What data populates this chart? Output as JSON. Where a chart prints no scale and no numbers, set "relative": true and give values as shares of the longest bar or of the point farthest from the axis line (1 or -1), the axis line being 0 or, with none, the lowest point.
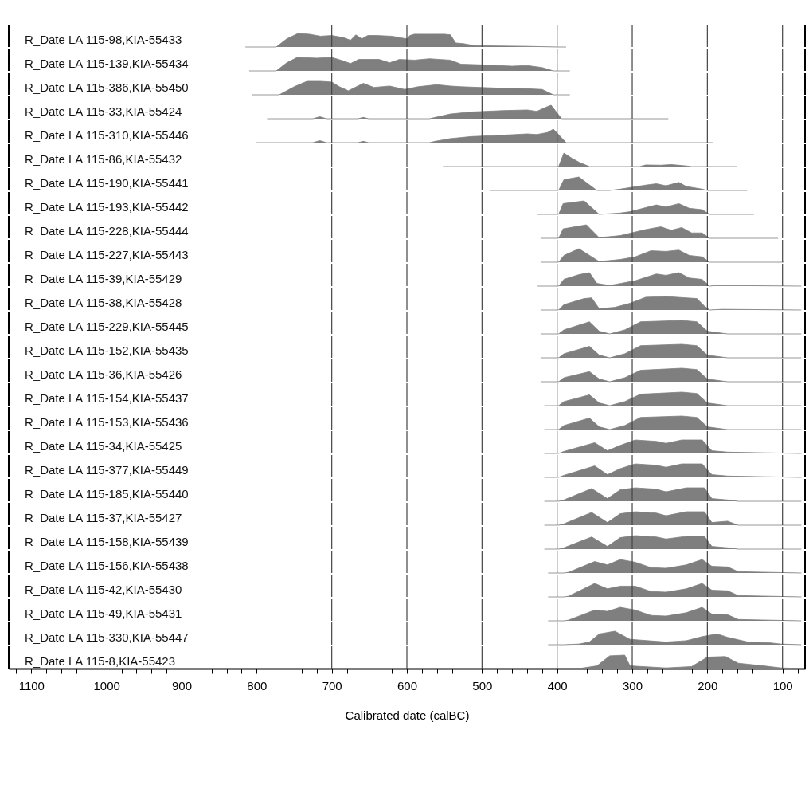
{
  "chart_data": [
    {
      "type": "area",
      "relative": true,
      "ylabel": "R_Date LA 115-98,KIA-55433",
      "color": "#7f7f7f",
      "xlim": [
        1130,
        70
      ],
      "tick_labels": false,
      "ref_lines": [
        {
          "axis": "x",
          "value": 700
        },
        {
          "axis": "x",
          "value": 600
        },
        {
          "axis": "x",
          "value": 500
        },
        {
          "axis": "x",
          "value": 400
        },
        {
          "axis": "x",
          "value": 300
        },
        {
          "axis": "x",
          "value": 200
        },
        {
          "axis": "x",
          "value": 100
        }
      ],
      "x": [
        815,
        774,
        760,
        745,
        730,
        715,
        700,
        685,
        675,
        668,
        660,
        652,
        640,
        620,
        600,
        596,
        590,
        570,
        550,
        542,
        535,
        525,
        510,
        480,
        440,
        400,
        388
      ],
      "values": [
        0,
        0,
        0.6,
        1,
        0.95,
        0.8,
        0.85,
        0.7,
        0.5,
        0.9,
        0.6,
        0.85,
        0.85,
        0.8,
        0.6,
        0.85,
        0.95,
        0.95,
        0.95,
        0.9,
        0.3,
        0.25,
        0.1,
        0.08,
        0.05,
        0,
        0
      ]
    },
    {
      "type": "area",
      "relative": true,
      "ylabel": "R_Date LA 115-139,KIA-55434",
      "color": "#7f7f7f",
      "xlim": [
        1130,
        70
      ],
      "tick_labels": false,
      "ref_lines": [
        {
          "axis": "x",
          "value": 700
        },
        {
          "axis": "x",
          "value": 600
        },
        {
          "axis": "x",
          "value": 500
        },
        {
          "axis": "x",
          "value": 400
        },
        {
          "axis": "x",
          "value": 300
        },
        {
          "axis": "x",
          "value": 200
        },
        {
          "axis": "x",
          "value": 100
        }
      ],
      "x": [
        810,
        774,
        760,
        746,
        720,
        700,
        688,
        675,
        664,
        650,
        637,
        623,
        610,
        590,
        570,
        542,
        528,
        500,
        460,
        440,
        420,
        405,
        383
      ],
      "values": [
        0,
        0,
        0.6,
        1,
        0.95,
        1,
        0.8,
        0.55,
        0.85,
        0.85,
        0.85,
        0.6,
        0.85,
        0.8,
        0.9,
        0.8,
        0.5,
        0.45,
        0.35,
        0.4,
        0.25,
        0,
        0
      ]
    },
    {
      "type": "area",
      "relative": true,
      "ylabel": "R_Date LA 115-386,KIA-55450",
      "color": "#7f7f7f",
      "xlim": [
        1130,
        70
      ],
      "tick_labels": false,
      "ref_lines": [
        {
          "axis": "x",
          "value": 700
        },
        {
          "axis": "x",
          "value": 600
        },
        {
          "axis": "x",
          "value": 500
        },
        {
          "axis": "x",
          "value": 400
        },
        {
          "axis": "x",
          "value": 300
        },
        {
          "axis": "x",
          "value": 200
        },
        {
          "axis": "x",
          "value": 100
        }
      ],
      "x": [
        806,
        770,
        750,
        733,
        715,
        700,
        690,
        678,
        658,
        644,
        623,
        603,
        585,
        560,
        542,
        528,
        480,
        440,
        420,
        405,
        383
      ],
      "values": [
        0,
        0,
        0.6,
        1,
        1,
        0.95,
        0.6,
        0.3,
        0.85,
        0.55,
        0.65,
        0.4,
        0.6,
        0.75,
        0.65,
        0.6,
        0.5,
        0.45,
        0.4,
        0,
        0
      ]
    },
    {
      "type": "area",
      "relative": true,
      "ylabel": "R_Date LA 115-33,KIA-55424",
      "color": "#7f7f7f",
      "xlim": [
        1130,
        70
      ],
      "tick_labels": false,
      "ref_lines": [
        {
          "axis": "x",
          "value": 700
        },
        {
          "axis": "x",
          "value": 600
        },
        {
          "axis": "x",
          "value": 500
        },
        {
          "axis": "x",
          "value": 400
        },
        {
          "axis": "x",
          "value": 300
        },
        {
          "axis": "x",
          "value": 200
        },
        {
          "axis": "x",
          "value": 100
        }
      ],
      "x": [
        786,
        725,
        716,
        707,
        665,
        658,
        651,
        570,
        562,
        542,
        514,
        473,
        440,
        427,
        413,
        408,
        394,
        252
      ],
      "values": [
        0,
        0,
        0.15,
        0,
        0,
        0.1,
        0,
        0,
        0.1,
        0.35,
        0.5,
        0.6,
        0.65,
        0.55,
        0.9,
        1,
        0,
        0
      ]
    },
    {
      "type": "area",
      "relative": true,
      "ylabel": "R_Date LA 115-310,KIA-55446",
      "color": "#7f7f7f",
      "xlim": [
        1130,
        70
      ],
      "tick_labels": false,
      "ref_lines": [
        {
          "axis": "x",
          "value": 700
        },
        {
          "axis": "x",
          "value": 600
        },
        {
          "axis": "x",
          "value": 500
        },
        {
          "axis": "x",
          "value": 400
        },
        {
          "axis": "x",
          "value": 300
        },
        {
          "axis": "x",
          "value": 200
        },
        {
          "axis": "x",
          "value": 100
        }
      ],
      "x": [
        801,
        725,
        716,
        707,
        665,
        658,
        651,
        570,
        562,
        542,
        514,
        473,
        440,
        427,
        413,
        405,
        388,
        192
      ],
      "values": [
        0,
        0,
        0.15,
        0,
        0,
        0.1,
        0,
        0,
        0.1,
        0.3,
        0.45,
        0.55,
        0.65,
        0.6,
        0.75,
        1,
        0,
        0
      ]
    },
    {
      "type": "area",
      "relative": true,
      "ylabel": "R_Date LA 115-86,KIA-55432",
      "color": "#7f7f7f",
      "xlim": [
        1130,
        70
      ],
      "tick_labels": false,
      "ref_lines": [
        {
          "axis": "x",
          "value": 700
        },
        {
          "axis": "x",
          "value": 600
        },
        {
          "axis": "x",
          "value": 500
        },
        {
          "axis": "x",
          "value": 400
        },
        {
          "axis": "x",
          "value": 300
        },
        {
          "axis": "x",
          "value": 200
        },
        {
          "axis": "x",
          "value": 100
        }
      ],
      "x": [
        552,
        398,
        391,
        380,
        370,
        357,
        290,
        282,
        262,
        248,
        238,
        228,
        221,
        161
      ],
      "values": [
        0,
        0,
        1,
        0.6,
        0.3,
        0,
        0,
        0.12,
        0.1,
        0.15,
        0.1,
        0.05,
        0,
        0
      ]
    },
    {
      "type": "area",
      "relative": true,
      "ylabel": "R_Date LA 115-190,KIA-55441",
      "color": "#7f7f7f",
      "xlim": [
        1130,
        70
      ],
      "tick_labels": false,
      "ref_lines": [
        {
          "axis": "x",
          "value": 700
        },
        {
          "axis": "x",
          "value": 600
        },
        {
          "axis": "x",
          "value": 500
        },
        {
          "axis": "x",
          "value": 400
        },
        {
          "axis": "x",
          "value": 300
        },
        {
          "axis": "x",
          "value": 200
        },
        {
          "axis": "x",
          "value": 100
        }
      ],
      "x": [
        490,
        398,
        391,
        371,
        347,
        330,
        316,
        282,
        268,
        255,
        238,
        228,
        207,
        200,
        147
      ],
      "values": [
        0,
        0,
        0.8,
        1,
        0,
        0,
        0.1,
        0.4,
        0.5,
        0.35,
        0.6,
        0.3,
        0.1,
        0,
        0
      ]
    },
    {
      "type": "area",
      "relative": true,
      "ylabel": "R_Date LA 115-193,KIA-55442",
      "color": "#7f7f7f",
      "xlim": [
        1130,
        70
      ],
      "tick_labels": false,
      "ref_lines": [
        {
          "axis": "x",
          "value": 700
        },
        {
          "axis": "x",
          "value": 600
        },
        {
          "axis": "x",
          "value": 500
        },
        {
          "axis": "x",
          "value": 400
        },
        {
          "axis": "x",
          "value": 300
        },
        {
          "axis": "x",
          "value": 200
        },
        {
          "axis": "x",
          "value": 100
        }
      ],
      "x": [
        426,
        398,
        392,
        364,
        344,
        316,
        303,
        268,
        255,
        238,
        224,
        207,
        197,
        138
      ],
      "values": [
        0,
        0,
        0.8,
        1,
        0,
        0.1,
        0.2,
        0.7,
        0.55,
        0.8,
        0.45,
        0.35,
        0,
        0
      ]
    },
    {
      "type": "area",
      "relative": true,
      "ylabel": "R_Date LA 115-228,KIA-55444",
      "color": "#7f7f7f",
      "xlim": [
        1130,
        70
      ],
      "tick_labels": false,
      "ref_lines": [
        {
          "axis": "x",
          "value": 700
        },
        {
          "axis": "x",
          "value": 600
        },
        {
          "axis": "x",
          "value": 500
        },
        {
          "axis": "x",
          "value": 400
        },
        {
          "axis": "x",
          "value": 300
        },
        {
          "axis": "x",
          "value": 200
        },
        {
          "axis": "x",
          "value": 100
        }
      ],
      "x": [
        422,
        398,
        392,
        361,
        344,
        316,
        282,
        262,
        248,
        234,
        221,
        207,
        197,
        106
      ],
      "values": [
        0,
        0,
        0.7,
        1,
        0.05,
        0.2,
        0.65,
        0.85,
        0.6,
        0.8,
        0.4,
        0.4,
        0,
        0
      ]
    },
    {
      "type": "area",
      "relative": true,
      "ylabel": "R_Date LA 115-227,KIA-55443",
      "color": "#7f7f7f",
      "xlim": [
        1130,
        70
      ],
      "tick_labels": false,
      "ref_lines": [
        {
          "axis": "x",
          "value": 700
        },
        {
          "axis": "x",
          "value": 600
        },
        {
          "axis": "x",
          "value": 500
        },
        {
          "axis": "x",
          "value": 400
        },
        {
          "axis": "x",
          "value": 300
        },
        {
          "axis": "x",
          "value": 200
        },
        {
          "axis": "x",
          "value": 100
        }
      ],
      "x": [
        422,
        398,
        391,
        371,
        344,
        316,
        296,
        275,
        255,
        238,
        224,
        207,
        197,
        98
      ],
      "values": [
        0,
        0,
        0.5,
        1,
        0.05,
        0.2,
        0.4,
        0.85,
        0.8,
        0.9,
        0.5,
        0.4,
        0,
        0
      ]
    },
    {
      "type": "area",
      "relative": true,
      "ylabel": "R_Date LA 115-39,KIA-55429",
      "color": "#7f7f7f",
      "xlim": [
        1130,
        70
      ],
      "tick_labels": false,
      "ref_lines": [
        {
          "axis": "x",
          "value": 700
        },
        {
          "axis": "x",
          "value": 600
        },
        {
          "axis": "x",
          "value": 500
        },
        {
          "axis": "x",
          "value": 400
        },
        {
          "axis": "x",
          "value": 300
        },
        {
          "axis": "x",
          "value": 200
        },
        {
          "axis": "x",
          "value": 100
        }
      ],
      "x": [
        426,
        398,
        391,
        371,
        357,
        347,
        330,
        296,
        268,
        255,
        238,
        224,
        207,
        197,
        187,
        75
      ],
      "values": [
        0,
        0,
        0.5,
        0.85,
        1,
        0.2,
        0.05,
        0.4,
        0.9,
        0.8,
        1,
        0.6,
        0.5,
        0,
        0.05,
        0
      ]
    },
    {
      "type": "area",
      "relative": true,
      "ylabel": "R_Date LA 115-38,KIA-55428",
      "color": "#7f7f7f",
      "xlim": [
        1130,
        70
      ],
      "tick_labels": false,
      "ref_lines": [
        {
          "axis": "x",
          "value": 700
        },
        {
          "axis": "x",
          "value": 600
        },
        {
          "axis": "x",
          "value": 500
        },
        {
          "axis": "x",
          "value": 400
        },
        {
          "axis": "x",
          "value": 300
        },
        {
          "axis": "x",
          "value": 200
        },
        {
          "axis": "x",
          "value": 100
        }
      ],
      "x": [
        422,
        398,
        391,
        364,
        354,
        344,
        323,
        303,
        282,
        255,
        228,
        214,
        204,
        197,
        180,
        75
      ],
      "values": [
        0,
        0,
        0.4,
        0.85,
        0.9,
        0.1,
        0.2,
        0.5,
        0.95,
        1,
        0.9,
        0.85,
        0.3,
        0,
        0.05,
        0
      ]
    },
    {
      "type": "area",
      "relative": true,
      "ylabel": "R_Date LA 115-229,KIA-55445",
      "color": "#7f7f7f",
      "xlim": [
        1130,
        70
      ],
      "tick_labels": false,
      "ref_lines": [
        {
          "axis": "x",
          "value": 700
        },
        {
          "axis": "x",
          "value": 600
        },
        {
          "axis": "x",
          "value": 500
        },
        {
          "axis": "x",
          "value": 400
        },
        {
          "axis": "x",
          "value": 300
        },
        {
          "axis": "x",
          "value": 200
        },
        {
          "axis": "x",
          "value": 100
        }
      ],
      "x": [
        422,
        398,
        391,
        357,
        344,
        330,
        310,
        289,
        234,
        214,
        200,
        180,
        173,
        75
      ],
      "values": [
        0,
        0,
        0.3,
        0.9,
        0.2,
        0,
        0.3,
        0.9,
        1,
        0.9,
        0.2,
        0.05,
        0,
        0
      ]
    },
    {
      "type": "area",
      "relative": true,
      "ylabel": "R_Date LA 115-152,KIA-55435",
      "color": "#7f7f7f",
      "xlim": [
        1130,
        70
      ],
      "tick_labels": false,
      "ref_lines": [
        {
          "axis": "x",
          "value": 700
        },
        {
          "axis": "x",
          "value": 600
        },
        {
          "axis": "x",
          "value": 500
        },
        {
          "axis": "x",
          "value": 400
        },
        {
          "axis": "x",
          "value": 300
        },
        {
          "axis": "x",
          "value": 200
        },
        {
          "axis": "x",
          "value": 100
        }
      ],
      "x": [
        422,
        398,
        391,
        357,
        344,
        330,
        310,
        289,
        234,
        214,
        200,
        180,
        173,
        75
      ],
      "values": [
        0,
        0,
        0.3,
        0.85,
        0.2,
        0,
        0.3,
        0.9,
        1,
        0.9,
        0.2,
        0.05,
        0,
        0
      ]
    },
    {
      "type": "area",
      "relative": true,
      "ylabel": "R_Date LA 115-36,KIA-55426",
      "color": "#7f7f7f",
      "xlim": [
        1130,
        70
      ],
      "tick_labels": false,
      "ref_lines": [
        {
          "axis": "x",
          "value": 700
        },
        {
          "axis": "x",
          "value": 600
        },
        {
          "axis": "x",
          "value": 500
        },
        {
          "axis": "x",
          "value": 400
        },
        {
          "axis": "x",
          "value": 300
        },
        {
          "axis": "x",
          "value": 200
        },
        {
          "axis": "x",
          "value": 100
        }
      ],
      "x": [
        422,
        398,
        391,
        357,
        344,
        330,
        310,
        289,
        234,
        214,
        200,
        180,
        173,
        75
      ],
      "values": [
        0,
        0,
        0.3,
        0.75,
        0.2,
        0,
        0.3,
        0.85,
        1,
        0.9,
        0.2,
        0.05,
        0,
        0
      ]
    },
    {
      "type": "area",
      "relative": true,
      "ylabel": "R_Date LA 115-154,KIA-55437",
      "color": "#7f7f7f",
      "xlim": [
        1130,
        70
      ],
      "tick_labels": false,
      "ref_lines": [
        {
          "axis": "x",
          "value": 700
        },
        {
          "axis": "x",
          "value": 600
        },
        {
          "axis": "x",
          "value": 500
        },
        {
          "axis": "x",
          "value": 400
        },
        {
          "axis": "x",
          "value": 300
        },
        {
          "axis": "x",
          "value": 200
        },
        {
          "axis": "x",
          "value": 100
        }
      ],
      "x": [
        417,
        398,
        391,
        357,
        344,
        330,
        310,
        289,
        234,
        214,
        200,
        180,
        173,
        75
      ],
      "values": [
        0,
        0,
        0.3,
        0.8,
        0.2,
        0,
        0.3,
        0.85,
        1,
        0.9,
        0.2,
        0.05,
        0,
        0
      ]
    },
    {
      "type": "area",
      "relative": true,
      "ylabel": "R_Date LA 115-153,KIA-55436",
      "color": "#7f7f7f",
      "xlim": [
        1130,
        70
      ],
      "tick_labels": false,
      "ref_lines": [
        {
          "axis": "x",
          "value": 700
        },
        {
          "axis": "x",
          "value": 600
        },
        {
          "axis": "x",
          "value": 500
        },
        {
          "axis": "x",
          "value": 400
        },
        {
          "axis": "x",
          "value": 300
        },
        {
          "axis": "x",
          "value": 200
        },
        {
          "axis": "x",
          "value": 100
        }
      ],
      "x": [
        417,
        398,
        391,
        357,
        344,
        330,
        310,
        289,
        234,
        214,
        200,
        180,
        173,
        75
      ],
      "values": [
        0,
        0,
        0.3,
        0.85,
        0.2,
        0,
        0.3,
        0.9,
        1,
        0.9,
        0.2,
        0.05,
        0,
        0
      ]
    },
    {
      "type": "area",
      "relative": true,
      "ylabel": "R_Date LA 115-34,KIA-55425",
      "color": "#7f7f7f",
      "xlim": [
        1130,
        70
      ],
      "tick_labels": false,
      "ref_lines": [
        {
          "axis": "x",
          "value": 700
        },
        {
          "axis": "x",
          "value": 600
        },
        {
          "axis": "x",
          "value": 500
        },
        {
          "axis": "x",
          "value": 400
        },
        {
          "axis": "x",
          "value": 300
        },
        {
          "axis": "x",
          "value": 200
        },
        {
          "axis": "x",
          "value": 100
        }
      ],
      "x": [
        417,
        398,
        391,
        350,
        333,
        316,
        296,
        268,
        255,
        234,
        207,
        194,
        173,
        75
      ],
      "values": [
        0,
        0,
        0.15,
        0.8,
        0.2,
        0.6,
        1,
        0.9,
        0.75,
        1,
        1,
        0.2,
        0.1,
        0
      ]
    },
    {
      "type": "area",
      "relative": true,
      "ylabel": "R_Date LA 115-377,KIA-55449",
      "color": "#7f7f7f",
      "xlim": [
        1130,
        70
      ],
      "tick_labels": false,
      "ref_lines": [
        {
          "axis": "x",
          "value": 700
        },
        {
          "axis": "x",
          "value": 600
        },
        {
          "axis": "x",
          "value": 500
        },
        {
          "axis": "x",
          "value": 400
        },
        {
          "axis": "x",
          "value": 300
        },
        {
          "axis": "x",
          "value": 200
        },
        {
          "axis": "x",
          "value": 100
        }
      ],
      "x": [
        417,
        398,
        391,
        350,
        333,
        316,
        296,
        268,
        255,
        234,
        207,
        194,
        173,
        75
      ],
      "values": [
        0,
        0,
        0.15,
        0.85,
        0.2,
        0.65,
        1,
        0.9,
        0.75,
        1,
        1,
        0.2,
        0.1,
        0
      ]
    },
    {
      "type": "area",
      "relative": true,
      "ylabel": "R_Date LA 115-185,KIA-55440",
      "color": "#7f7f7f",
      "xlim": [
        1130,
        70
      ],
      "tick_labels": false,
      "ref_lines": [
        {
          "axis": "x",
          "value": 700
        },
        {
          "axis": "x",
          "value": 600
        },
        {
          "axis": "x",
          "value": 500
        },
        {
          "axis": "x",
          "value": 400
        },
        {
          "axis": "x",
          "value": 300
        },
        {
          "axis": "x",
          "value": 200
        },
        {
          "axis": "x",
          "value": 100
        }
      ],
      "x": [
        417,
        398,
        391,
        354,
        333,
        316,
        296,
        268,
        255,
        228,
        204,
        194,
        173,
        159,
        75
      ],
      "values": [
        0,
        0,
        0.1,
        0.95,
        0.2,
        0.85,
        1,
        0.9,
        0.7,
        1,
        1,
        0.2,
        0.1,
        0,
        0
      ]
    },
    {
      "type": "area",
      "relative": true,
      "ylabel": "R_Date LA 115-37,KIA-55427",
      "color": "#7f7f7f",
      "xlim": [
        1130,
        70
      ],
      "tick_labels": false,
      "ref_lines": [
        {
          "axis": "x",
          "value": 700
        },
        {
          "axis": "x",
          "value": 600
        },
        {
          "axis": "x",
          "value": 500
        },
        {
          "axis": "x",
          "value": 400
        },
        {
          "axis": "x",
          "value": 300
        },
        {
          "axis": "x",
          "value": 200
        },
        {
          "axis": "x",
          "value": 100
        }
      ],
      "x": [
        417,
        398,
        391,
        354,
        333,
        316,
        296,
        268,
        255,
        228,
        204,
        194,
        173,
        159,
        75
      ],
      "values": [
        0,
        0,
        0.1,
        0.95,
        0.2,
        0.85,
        1,
        0.9,
        0.7,
        1,
        1,
        0.2,
        0.3,
        0,
        0
      ]
    },
    {
      "type": "area",
      "relative": true,
      "ylabel": "R_Date LA 115-158,KIA-55439",
      "color": "#7f7f7f",
      "xlim": [
        1130,
        70
      ],
      "tick_labels": false,
      "ref_lines": [
        {
          "axis": "x",
          "value": 700
        },
        {
          "axis": "x",
          "value": 600
        },
        {
          "axis": "x",
          "value": 500
        },
        {
          "axis": "x",
          "value": 400
        },
        {
          "axis": "x",
          "value": 300
        },
        {
          "axis": "x",
          "value": 200
        },
        {
          "axis": "x",
          "value": 100
        }
      ],
      "x": [
        417,
        398,
        391,
        354,
        333,
        316,
        296,
        268,
        255,
        228,
        204,
        194,
        173,
        159,
        75
      ],
      "values": [
        0,
        0,
        0.1,
        0.9,
        0.2,
        0.85,
        1,
        0.9,
        0.75,
        0.95,
        0.95,
        0.2,
        0.1,
        0,
        0
      ]
    },
    {
      "type": "area",
      "relative": true,
      "ylabel": "R_Date LA 115-156,KIA-55438",
      "color": "#7f7f7f",
      "xlim": [
        1130,
        70
      ],
      "tick_labels": false,
      "ref_lines": [
        {
          "axis": "x",
          "value": 700
        },
        {
          "axis": "x",
          "value": 600
        },
        {
          "axis": "x",
          "value": 500
        },
        {
          "axis": "x",
          "value": 400
        },
        {
          "axis": "x",
          "value": 300
        },
        {
          "axis": "x",
          "value": 200
        },
        {
          "axis": "x",
          "value": 100
        }
      ],
      "x": [
        412,
        391,
        385,
        350,
        333,
        316,
        296,
        275,
        255,
        228,
        207,
        194,
        173,
        159,
        118,
        75
      ],
      "values": [
        0,
        0,
        0.05,
        0.85,
        0.6,
        1,
        0.8,
        0.4,
        0.35,
        0.6,
        1,
        0.5,
        0.45,
        0.1,
        0.05,
        0
      ]
    },
    {
      "type": "area",
      "relative": true,
      "ylabel": "R_Date LA 115-42,KIA-55430",
      "color": "#7f7f7f",
      "xlim": [
        1130,
        70
      ],
      "tick_labels": false,
      "ref_lines": [
        {
          "axis": "x",
          "value": 700
        },
        {
          "axis": "x",
          "value": 600
        },
        {
          "axis": "x",
          "value": 500
        },
        {
          "axis": "x",
          "value": 400
        },
        {
          "axis": "x",
          "value": 300
        },
        {
          "axis": "x",
          "value": 200
        },
        {
          "axis": "x",
          "value": 100
        }
      ],
      "x": [
        412,
        391,
        385,
        350,
        333,
        316,
        296,
        275,
        255,
        228,
        207,
        194,
        173,
        159,
        118,
        75
      ],
      "values": [
        0,
        0,
        0.05,
        1,
        0.6,
        0.8,
        0.8,
        0.4,
        0.35,
        0.6,
        1,
        0.5,
        0.45,
        0.1,
        0.05,
        0
      ]
    },
    {
      "type": "area",
      "relative": true,
      "ylabel": "R_Date LA 115-49,KIA-55431",
      "color": "#7f7f7f",
      "xlim": [
        1130,
        70
      ],
      "tick_labels": false,
      "ref_lines": [
        {
          "axis": "x",
          "value": 700
        },
        {
          "axis": "x",
          "value": 600
        },
        {
          "axis": "x",
          "value": 500
        },
        {
          "axis": "x",
          "value": 400
        },
        {
          "axis": "x",
          "value": 300
        },
        {
          "axis": "x",
          "value": 200
        },
        {
          "axis": "x",
          "value": 100
        }
      ],
      "x": [
        412,
        391,
        385,
        350,
        333,
        316,
        296,
        275,
        255,
        228,
        207,
        194,
        173,
        159,
        118,
        75
      ],
      "values": [
        0,
        0,
        0.05,
        0.8,
        0.7,
        1,
        0.8,
        0.4,
        0.35,
        0.6,
        1,
        0.5,
        0.45,
        0.1,
        0.05,
        0
      ]
    },
    {
      "type": "area",
      "relative": true,
      "ylabel": "R_Date LA 115-330,KIA-55447",
      "color": "#7f7f7f",
      "xlim": [
        1130,
        70
      ],
      "tick_labels": false,
      "ref_lines": [
        {
          "axis": "x",
          "value": 700
        },
        {
          "axis": "x",
          "value": 600
        },
        {
          "axis": "x",
          "value": 500
        },
        {
          "axis": "x",
          "value": 400
        },
        {
          "axis": "x",
          "value": 300
        },
        {
          "axis": "x",
          "value": 200
        },
        {
          "axis": "x",
          "value": 100
        }
      ],
      "x": [
        412,
        391,
        371,
        357,
        344,
        323,
        303,
        255,
        228,
        207,
        187,
        173,
        146,
        118,
        102,
        75
      ],
      "values": [
        0,
        0,
        0.05,
        0.2,
        0.8,
        1,
        0.4,
        0.2,
        0.3,
        0.6,
        0.8,
        0.55,
        0.2,
        0.15,
        0.05,
        0
      ]
    },
    {
      "type": "area",
      "relative": true,
      "ylabel": "R_Date LA 115-8,KIA-55423",
      "xlabel": "Calibrated date (calBC)",
      "color": "#7f7f7f",
      "xlim": [
        1130,
        70
      ],
      "tick_labels": "x",
      "ref_lines": [
        {
          "axis": "x",
          "value": 700
        },
        {
          "axis": "x",
          "value": 600
        },
        {
          "axis": "x",
          "value": 500
        },
        {
          "axis": "x",
          "value": 400
        },
        {
          "axis": "x",
          "value": 300
        },
        {
          "axis": "x",
          "value": 200
        },
        {
          "axis": "x",
          "value": 100
        }
      ],
      "xticks": [
        {
          "value": 1120,
          "label": null
        },
        1100,
        {
          "value": 1080,
          "label": null
        },
        {
          "value": 1060,
          "label": null
        },
        {
          "value": 1040,
          "label": null
        },
        {
          "value": 1020,
          "label": null
        },
        1000,
        {
          "value": 980,
          "label": null
        },
        {
          "value": 960,
          "label": null
        },
        {
          "value": 940,
          "label": null
        },
        {
          "value": 920,
          "label": null
        },
        900,
        {
          "value": 880,
          "label": null
        },
        {
          "value": 860,
          "label": null
        },
        {
          "value": 840,
          "label": null
        },
        {
          "value": 820,
          "label": null
        },
        800,
        {
          "value": 780,
          "label": null
        },
        {
          "value": 760,
          "label": null
        },
        {
          "value": 740,
          "label": null
        },
        {
          "value": 720,
          "label": null
        },
        700,
        {
          "value": 680,
          "label": null
        },
        {
          "value": 660,
          "label": null
        },
        {
          "value": 640,
          "label": null
        },
        {
          "value": 620,
          "label": null
        },
        600,
        {
          "value": 580,
          "label": null
        },
        {
          "value": 560,
          "label": null
        },
        {
          "value": 540,
          "label": null
        },
        {
          "value": 520,
          "label": null
        },
        500,
        {
          "value": 480,
          "label": null
        },
        {
          "value": 460,
          "label": null
        },
        {
          "value": 440,
          "label": null
        },
        {
          "value": 420,
          "label": null
        },
        400,
        {
          "value": 380,
          "label": null
        },
        {
          "value": 360,
          "label": null
        },
        {
          "value": 340,
          "label": null
        },
        {
          "value": 320,
          "label": null
        },
        300,
        {
          "value": 280,
          "label": null
        },
        {
          "value": 260,
          "label": null
        },
        {
          "value": 240,
          "label": null
        },
        {
          "value": 220,
          "label": null
        },
        200,
        {
          "value": 180,
          "label": null
        },
        {
          "value": 160,
          "label": null
        },
        {
          "value": 140,
          "label": null
        },
        {
          "value": 120,
          "label": null
        },
        100,
        {
          "value": 80,
          "label": null
        }
      ],
      "x": [
        406,
        391,
        371,
        347,
        330,
        310,
        303,
        255,
        221,
        200,
        176,
        159,
        125,
        102,
        75
      ],
      "values": [
        0,
        0,
        0,
        0.2,
        0.95,
        1,
        0.2,
        0.05,
        0.15,
        0.85,
        0.9,
        0.4,
        0.2,
        0.05,
        0
      ]
    }
  ]
}
